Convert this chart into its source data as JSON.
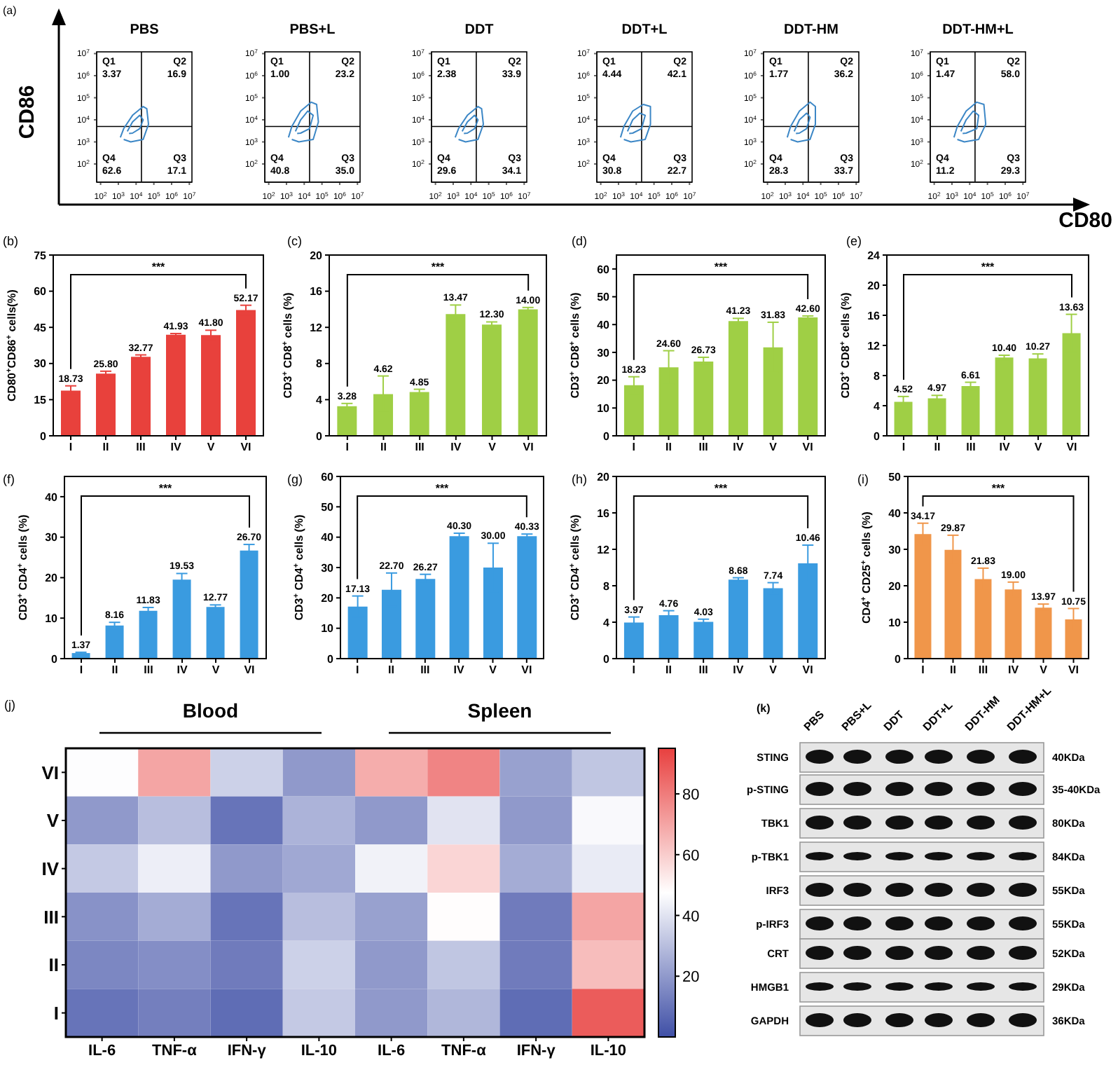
{
  "chart_data": [
    {
      "type": "line",
      "title": "PBS",
      "ylabel": "CD86",
      "annotations": [
        "(a)",
        "Q1",
        "3.37",
        "Q2",
        "16.9",
        "Q4",
        "62.6",
        "Q3",
        "17.1"
      ],
      "log": "xy",
      "marker": "none",
      "xlim": [
        60,
        14000000
      ],
      "ylim": [
        15,
        12000000
      ],
      "xticks": [
        {
          "value": 100,
          "label": "10$^{2}$"
        },
        {
          "value": 1000,
          "label": "10$^{3}$"
        },
        {
          "value": 10000,
          "label": "10$^{4}$"
        },
        {
          "value": 100000,
          "label": "10$^{5}$"
        },
        {
          "value": 1000000,
          "label": "10$^{6}$"
        },
        {
          "value": 10000000,
          "label": "10$^{7}$"
        }
      ],
      "yticks": [
        {
          "value": 100,
          "label": "10$^{2}$"
        },
        {
          "value": 1000,
          "label": "10$^{3}$"
        },
        {
          "value": 10000,
          "label": "10$^{4}$"
        },
        {
          "value": 100000,
          "label": "10$^{5}$"
        },
        {
          "value": 1000000,
          "label": "10$^{6}$"
        },
        {
          "value": 10000000,
          "label": "10$^{7}$"
        }
      ],
      "ref_lines": [
        {
          "axis": "x",
          "value": 20000
        },
        {
          "axis": "y",
          "value": 5000
        }
      ],
      "series": [
        {
          "color": "#3c87c6",
          "x": [
            1300,
            2000,
            6300,
            25000,
            40000,
            50000,
            25000,
            5000,
            2000
          ],
          "values": [
            1600,
            4000,
            16000,
            40000,
            32000,
            6300,
            1300,
            1000,
            1300
          ]
        },
        {
          "color": "#3c87c6",
          "x": [
            3200,
            6300,
            16000,
            25000,
            16000,
            6300,
            4000
          ],
          "values": [
            3000,
            8000,
            16000,
            10000,
            4000,
            2500,
            2400
          ]
        }
      ]
    },
    {
      "type": "line",
      "title": "PBS+L",
      "annotations": [
        "Q1",
        "1.00",
        "Q2",
        "23.2",
        "Q4",
        "40.8",
        "Q3",
        "35.0"
      ],
      "log": "xy",
      "marker": "none",
      "xlim": [
        60,
        14000000
      ],
      "ylim": [
        15,
        12000000
      ],
      "xticks": [
        {
          "value": 100,
          "label": "10$^{2}$"
        },
        {
          "value": 1000,
          "label": "10$^{3}$"
        },
        {
          "value": 10000,
          "label": "10$^{4}$"
        },
        {
          "value": 100000,
          "label": "10$^{5}$"
        },
        {
          "value": 1000000,
          "label": "10$^{6}$"
        },
        {
          "value": 10000000,
          "label": "10$^{7}$"
        }
      ],
      "yticks": [
        {
          "value": 100,
          "label": "10$^{2}$"
        },
        {
          "value": 1000,
          "label": "10$^{3}$"
        },
        {
          "value": 10000,
          "label": "10$^{4}$"
        },
        {
          "value": 100000,
          "label": "10$^{5}$"
        },
        {
          "value": 1000000,
          "label": "10$^{6}$"
        },
        {
          "value": 10000000,
          "label": "10$^{7}$"
        }
      ],
      "ref_lines": [
        {
          "axis": "x",
          "value": 20000
        },
        {
          "axis": "y",
          "value": 5000
        }
      ],
      "series": [
        {
          "color": "#3c87c6",
          "x": [
            1300,
            2000,
            6300,
            25000,
            50000,
            63000,
            32000,
            5000,
            2000
          ],
          "values": [
            1600,
            5000,
            25000,
            63000,
            50000,
            8000,
            1300,
            1000,
            1300
          ]
        },
        {
          "color": "#3c87c6",
          "x": [
            3200,
            6300,
            16000,
            32000,
            20000,
            6300,
            4000
          ],
          "values": [
            3000,
            10000,
            25000,
            16000,
            4000,
            2500,
            2400
          ]
        }
      ]
    },
    {
      "type": "line",
      "title": "DDT",
      "annotations": [
        "Q1",
        "2.38",
        "Q2",
        "33.9",
        "Q4",
        "29.6",
        "Q3",
        "34.1"
      ],
      "log": "xy",
      "marker": "none",
      "xlim": [
        60,
        14000000
      ],
      "ylim": [
        15,
        12000000
      ],
      "xticks": [
        {
          "value": 100,
          "label": "10$^{2}$"
        },
        {
          "value": 1000,
          "label": "10$^{3}$"
        },
        {
          "value": 10000,
          "label": "10$^{4}$"
        },
        {
          "value": 100000,
          "label": "10$^{5}$"
        },
        {
          "value": 1000000,
          "label": "10$^{6}$"
        },
        {
          "value": 10000000,
          "label": "10$^{7}$"
        }
      ],
      "yticks": [
        {
          "value": 100,
          "label": "10$^{2}$"
        },
        {
          "value": 1000,
          "label": "10$^{3}$"
        },
        {
          "value": 10000,
          "label": "10$^{4}$"
        },
        {
          "value": 100000,
          "label": "10$^{5}$"
        },
        {
          "value": 1000000,
          "label": "10$^{6}$"
        },
        {
          "value": 10000000,
          "label": "10$^{7}$"
        }
      ],
      "ref_lines": [
        {
          "axis": "x",
          "value": 20000
        },
        {
          "axis": "y",
          "value": 5000
        }
      ],
      "series": [
        {
          "color": "#3c87c6",
          "x": [
            1300,
            2000,
            6300,
            25000,
            40000,
            50000,
            25000,
            5000,
            2000
          ],
          "values": [
            1600,
            4000,
            16000,
            40000,
            32000,
            6300,
            1300,
            1000,
            1300
          ]
        },
        {
          "color": "#3c87c6",
          "x": [
            3200,
            6300,
            16000,
            25000,
            16000,
            6300,
            4000
          ],
          "values": [
            3000,
            8000,
            16000,
            10000,
            4000,
            2500,
            2400
          ]
        }
      ]
    },
    {
      "type": "line",
      "title": "DDT+L",
      "annotations": [
        "Q1",
        "4.44",
        "Q2",
        "42.1",
        "Q4",
        "30.8",
        "Q3",
        "22.7"
      ],
      "log": "xy",
      "marker": "none",
      "xlim": [
        60,
        14000000
      ],
      "ylim": [
        15,
        12000000
      ],
      "xticks": [
        {
          "value": 100,
          "label": "10$^{2}$"
        },
        {
          "value": 1000,
          "label": "10$^{3}$"
        },
        {
          "value": 10000,
          "label": "10$^{4}$"
        },
        {
          "value": 100000,
          "label": "10$^{5}$"
        },
        {
          "value": 1000000,
          "label": "10$^{6}$"
        },
        {
          "value": 10000000,
          "label": "10$^{7}$"
        }
      ],
      "yticks": [
        {
          "value": 100,
          "label": "10$^{2}$"
        },
        {
          "value": 1000,
          "label": "10$^{3}$"
        },
        {
          "value": 10000,
          "label": "10$^{4}$"
        },
        {
          "value": 100000,
          "label": "10$^{5}$"
        },
        {
          "value": 1000000,
          "label": "10$^{6}$"
        },
        {
          "value": 10000000,
          "label": "10$^{7}$"
        }
      ],
      "ref_lines": [
        {
          "axis": "x",
          "value": 20000
        },
        {
          "axis": "y",
          "value": 5000
        }
      ],
      "series": [
        {
          "color": "#3c87c6",
          "x": [
            1300,
            2000,
            6300,
            25000,
            63000,
            63000,
            32000,
            5000,
            2000
          ],
          "values": [
            1600,
            5000,
            25000,
            50000,
            40000,
            6300,
            1300,
            1000,
            1300
          ]
        },
        {
          "color": "#3c87c6",
          "x": [
            3200,
            6300,
            16000,
            32000,
            20000,
            6300,
            4000
          ],
          "values": [
            3000,
            10000,
            20000,
            16000,
            4000,
            2500,
            2400
          ]
        }
      ]
    },
    {
      "type": "line",
      "title": "DDT-HM",
      "annotations": [
        "Q1",
        "1.77",
        "Q2",
        "36.2",
        "Q4",
        "28.3",
        "Q3",
        "33.7"
      ],
      "log": "xy",
      "marker": "none",
      "xlim": [
        60,
        14000000
      ],
      "ylim": [
        15,
        12000000
      ],
      "xticks": [
        {
          "value": 100,
          "label": "10$^{2}$"
        },
        {
          "value": 1000,
          "label": "10$^{3}$"
        },
        {
          "value": 10000,
          "label": "10$^{4}$"
        },
        {
          "value": 100000,
          "label": "10$^{5}$"
        },
        {
          "value": 1000000,
          "label": "10$^{6}$"
        },
        {
          "value": 10000000,
          "label": "10$^{7}$"
        }
      ],
      "yticks": [
        {
          "value": 100,
          "label": "10$^{2}$"
        },
        {
          "value": 1000,
          "label": "10$^{3}$"
        },
        {
          "value": 10000,
          "label": "10$^{4}$"
        },
        {
          "value": 100000,
          "label": "10$^{5}$"
        },
        {
          "value": 1000000,
          "label": "10$^{6}$"
        },
        {
          "value": 10000000,
          "label": "10$^{7}$"
        }
      ],
      "ref_lines": [
        {
          "axis": "x",
          "value": 20000
        },
        {
          "axis": "y",
          "value": 5000
        }
      ],
      "series": [
        {
          "color": "#3c87c6",
          "x": [
            1300,
            2000,
            6300,
            25000,
            50000,
            50000,
            25000,
            5000,
            2000
          ],
          "values": [
            1600,
            5000,
            25000,
            63000,
            40000,
            6300,
            1300,
            1000,
            1300
          ]
        },
        {
          "color": "#3c87c6",
          "x": [
            3200,
            6300,
            16000,
            25000,
            16000,
            6300,
            4000
          ],
          "values": [
            3000,
            10000,
            20000,
            13000,
            4000,
            2500,
            2400
          ]
        }
      ]
    },
    {
      "type": "line",
      "title": "DDT-HM+L",
      "xlabel": "CD80",
      "annotations": [
        "Q1",
        "1.47",
        "Q2",
        "58.0",
        "Q4",
        "11.2",
        "Q3",
        "29.3"
      ],
      "log": "xy",
      "marker": "none",
      "xlim": [
        60,
        14000000
      ],
      "ylim": [
        15,
        12000000
      ],
      "xticks": [
        {
          "value": 100,
          "label": "10$^{2}$"
        },
        {
          "value": 1000,
          "label": "10$^{3}$"
        },
        {
          "value": 10000,
          "label": "10$^{4}$"
        },
        {
          "value": 100000,
          "label": "10$^{5}$"
        },
        {
          "value": 1000000,
          "label": "10$^{6}$"
        },
        {
          "value": 10000000,
          "label": "10$^{7}$"
        }
      ],
      "yticks": [
        {
          "value": 100,
          "label": "10$^{2}$"
        },
        {
          "value": 1000,
          "label": "10$^{3}$"
        },
        {
          "value": 10000,
          "label": "10$^{4}$"
        },
        {
          "value": 100000,
          "label": "10$^{5}$"
        },
        {
          "value": 1000000,
          "label": "10$^{6}$"
        },
        {
          "value": 10000000,
          "label": "10$^{7}$"
        }
      ],
      "ref_lines": [
        {
          "axis": "x",
          "value": 20000
        },
        {
          "axis": "y",
          "value": 5000
        }
      ],
      "series": [
        {
          "color": "#3c87c6",
          "x": [
            1300,
            2000,
            6300,
            25000,
            63000,
            80000,
            32000,
            5000,
            2000
          ],
          "values": [
            1600,
            5000,
            25000,
            63000,
            50000,
            6300,
            1300,
            1000,
            1300
          ]
        },
        {
          "color": "#3c87c6",
          "x": [
            3200,
            6300,
            16000,
            32000,
            25000,
            6300,
            4000
          ],
          "values": [
            3000,
            10000,
            25000,
            16000,
            4000,
            2500,
            2400
          ]
        }
      ]
    },
    {
      "type": "bar",
      "ylabel": "CD80$^{+}$CD86$^{+}$ cells(%)",
      "annotations": [
        "(b)",
        "***"
      ],
      "categories": [
        "I",
        "II",
        "III",
        "IV",
        "V",
        "VI"
      ],
      "values": [
        18.73,
        25.8,
        32.77,
        41.93,
        41.8,
        52.17
      ],
      "value_labels": [
        "18.73",
        "25.80",
        "32.77",
        "41.93",
        "41.80",
        "52.17"
      ],
      "errors": [
        2,
        1,
        0.8,
        0.5,
        2,
        2
      ],
      "color": "#e8413c",
      "ylim": [
        0,
        75
      ],
      "yticks": [
        0,
        15,
        30,
        45,
        60,
        75
      ]
    },
    {
      "type": "bar",
      "ylabel": "CD3$^{+}$ CD8$^{+}$ cells (%)",
      "annotations": [
        "(c)",
        "***"
      ],
      "categories": [
        "I",
        "II",
        "III",
        "IV",
        "V",
        "VI"
      ],
      "values": [
        3.28,
        4.62,
        4.85,
        13.47,
        12.3,
        14.0
      ],
      "value_labels": [
        "3.28",
        "4.62",
        "4.85",
        "13.47",
        "12.30",
        "14.00"
      ],
      "errors": [
        0.3,
        2,
        0.3,
        1,
        0.3,
        0.2
      ],
      "color": "#9fcf45",
      "ylim": [
        0,
        20
      ],
      "yticks": [
        0,
        4,
        8,
        12,
        16,
        20
      ]
    },
    {
      "type": "bar",
      "ylabel": "CD3$^{+}$ CD8$^{+}$ cells (%)",
      "annotations": [
        "(d)",
        "***"
      ],
      "categories": [
        "I",
        "II",
        "III",
        "IV",
        "V",
        "VI"
      ],
      "values": [
        18.23,
        24.6,
        26.73,
        41.23,
        31.83,
        42.6
      ],
      "value_labels": [
        "18.23",
        "24.60",
        "26.73",
        "41.23",
        "31.83",
        "42.60"
      ],
      "errors": [
        3,
        6,
        1.5,
        1,
        9,
        0.5
      ],
      "color": "#9fcf45",
      "ylim": [
        0,
        65
      ],
      "yticks": [
        0,
        10,
        20,
        30,
        40,
        50,
        60
      ]
    },
    {
      "type": "bar",
      "ylabel": "CD3$^{+}$ CD8$^{+}$ cells (%)",
      "annotations": [
        "(e)",
        "***"
      ],
      "categories": [
        "I",
        "II",
        "III",
        "IV",
        "V",
        "VI"
      ],
      "values": [
        4.52,
        4.97,
        6.61,
        10.4,
        10.27,
        13.63
      ],
      "value_labels": [
        "4.52",
        "4.97",
        "6.61",
        "10.40",
        "10.27",
        "13.63"
      ],
      "errors": [
        0.7,
        0.4,
        0.5,
        0.3,
        0.6,
        2.5
      ],
      "color": "#9fcf45",
      "ylim": [
        0,
        24
      ],
      "yticks": [
        0,
        4,
        8,
        12,
        16,
        20,
        24
      ]
    },
    {
      "type": "bar",
      "ylabel": "CD3$^{+}$ CD4$^{+}$ cells (%)",
      "annotations": [
        "(f)",
        "***"
      ],
      "categories": [
        "I",
        "II",
        "III",
        "IV",
        "V",
        "VI"
      ],
      "values": [
        1.37,
        8.16,
        11.83,
        19.53,
        12.77,
        26.7
      ],
      "value_labels": [
        "1.37",
        "8.16",
        "11.83",
        "19.53",
        "12.77",
        "26.70"
      ],
      "errors": [
        0.2,
        0.8,
        0.8,
        1.5,
        0.5,
        1.5
      ],
      "color": "#3a9be0",
      "ylim": [
        0,
        45
      ],
      "yticks": [
        0,
        10,
        20,
        30,
        40
      ]
    },
    {
      "type": "bar",
      "ylabel": "CD3$^{+}$ CD4$^{+}$ cells (%)",
      "annotations": [
        "(g)",
        "***"
      ],
      "categories": [
        "I",
        "II",
        "III",
        "IV",
        "V",
        "VI"
      ],
      "values": [
        17.13,
        22.7,
        26.27,
        40.3,
        30.0,
        40.33
      ],
      "value_labels": [
        "17.13",
        "22.70",
        "26.27",
        "40.30",
        "30.00",
        "40.33"
      ],
      "errors": [
        3.5,
        5.5,
        1.5,
        1,
        8,
        0.7
      ],
      "color": "#3a9be0",
      "ylim": [
        0,
        60
      ],
      "yticks": [
        0,
        10,
        20,
        30,
        40,
        50,
        60
      ]
    },
    {
      "type": "bar",
      "ylabel": "CD3$^{+}$ CD4$^{+}$ cells (%)",
      "annotations": [
        "(h)",
        "***"
      ],
      "categories": [
        "I",
        "II",
        "III",
        "IV",
        "V",
        "VI"
      ],
      "values": [
        3.97,
        4.76,
        4.03,
        8.68,
        7.74,
        10.46
      ],
      "value_labels": [
        "3.97",
        "4.76",
        "4.03",
        "8.68",
        "7.74",
        "10.46"
      ],
      "errors": [
        0.6,
        0.5,
        0.3,
        0.2,
        0.6,
        2
      ],
      "color": "#3a9be0",
      "ylim": [
        0,
        20
      ],
      "yticks": [
        0,
        4,
        8,
        12,
        16,
        20
      ]
    },
    {
      "type": "bar",
      "ylabel": "CD4$^{+}$ CD25$^{+}$ cells (%)",
      "annotations": [
        "(i)",
        "***"
      ],
      "categories": [
        "I",
        "II",
        "III",
        "IV",
        "V",
        "VI"
      ],
      "values": [
        34.17,
        29.87,
        21.83,
        19.0,
        13.97,
        10.75
      ],
      "value_labels": [
        "34.17",
        "29.87",
        "21.83",
        "19.00",
        "13.97",
        "10.75"
      ],
      "errors": [
        3,
        4,
        3,
        2,
        1,
        3
      ],
      "color": "#f0964a",
      "ylim": [
        0,
        50
      ],
      "yticks": [
        0,
        10,
        20,
        30,
        40,
        50
      ]
    },
    {
      "type": "heatmap",
      "annotations": [
        "(j)",
        "Blood",
        "Spleen"
      ],
      "categories": [
        "IL-6",
        "TNF-α",
        "IFN-γ",
        "IL-10",
        "IL-6",
        "TNF-α",
        "IFN-γ",
        "IL-10"
      ],
      "y_categories": [
        "VI",
        "V",
        "IV",
        "III",
        "II",
        "I"
      ],
      "cells": [
        [
          47,
          70,
          35,
          20,
          68,
          78,
          22,
          32
        ],
        [
          20,
          30,
          10,
          27,
          20,
          40,
          20,
          46
        ],
        [
          33,
          43,
          20,
          24,
          44,
          58,
          25,
          42
        ],
        [
          18,
          25,
          10,
          30,
          22,
          48,
          12,
          70
        ],
        [
          15,
          17,
          12,
          35,
          20,
          32,
          12,
          64
        ],
        [
          10,
          13,
          8,
          33,
          20,
          28,
          8,
          88
        ]
      ],
      "clim": [
        0,
        95
      ],
      "cticks": [
        20,
        40,
        60,
        80
      ]
    },
    {
      "type": "other",
      "annotations": [
        "(k)"
      ],
      "categories": [
        "PBS",
        "PBS+L",
        "DDT",
        "DDT+L",
        "DDT-HM",
        "DDT-HM+L"
      ],
      "y_categories": [
        "STING",
        "p-STING",
        "TBK1",
        "p-TBK1",
        "IRF3",
        "p-IRF3",
        "CRT",
        "HMGB1",
        "GAPDH"
      ],
      "y2_categories": [
        "40KDa",
        "35-40KDa",
        "80KDa",
        "84KDa",
        "55KDa",
        "55KDa",
        "52KDa",
        "29KDa",
        "36KDa"
      ]
    }
  ]
}
